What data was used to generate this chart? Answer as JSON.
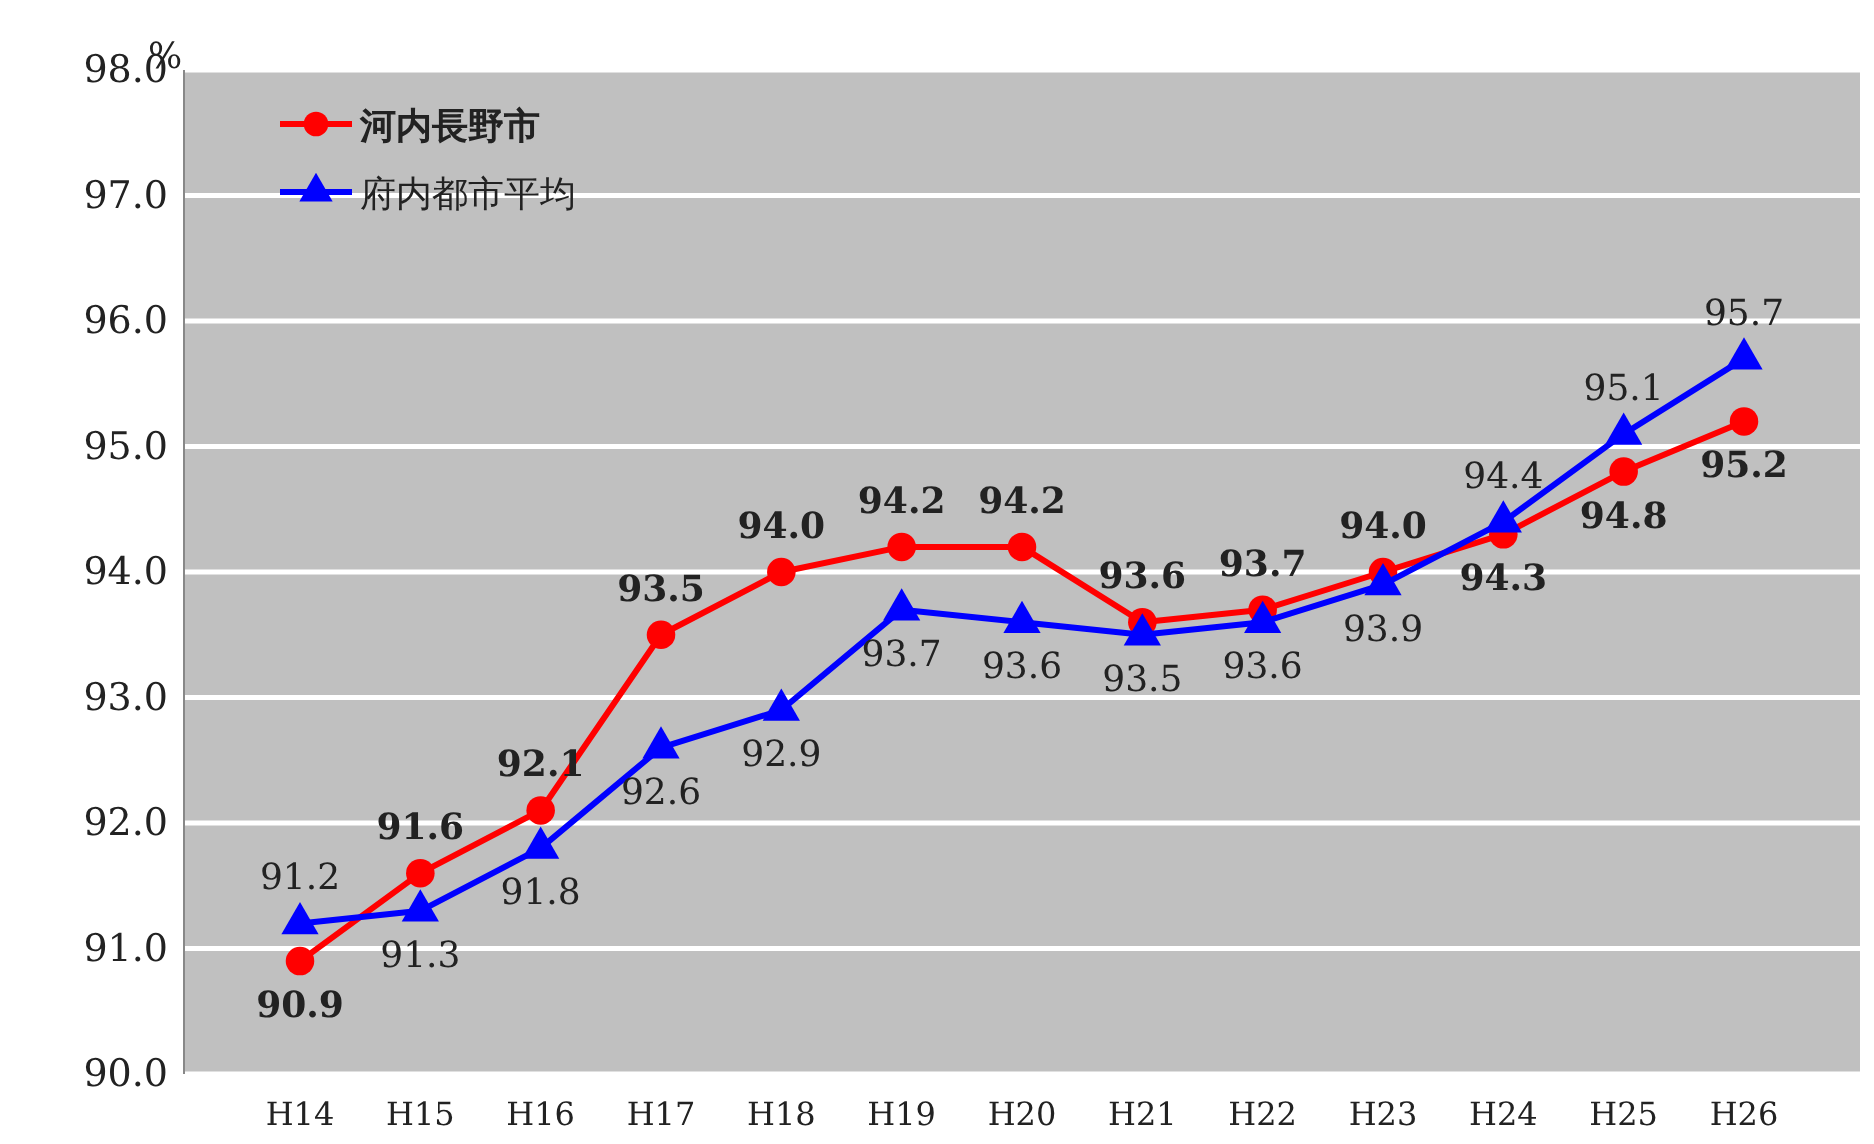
{
  "chart_data": {
    "type": "line",
    "ylabel": "%",
    "categories": [
      "H14",
      "H15",
      "H16",
      "H17",
      "H18",
      "H19",
      "H20",
      "H21",
      "H22",
      "H23",
      "H24",
      "H25",
      "H26"
    ],
    "series": [
      {
        "name": "河内長野市",
        "color": "#ff0000",
        "marker": "circle",
        "values": [
          90.9,
          91.6,
          92.1,
          93.5,
          94.0,
          94.2,
          94.2,
          93.6,
          93.7,
          94.0,
          94.3,
          94.8,
          95.2
        ],
        "value_labels": [
          "90.9",
          "91.6",
          "92.1",
          "93.5",
          "94.0",
          "94.2",
          "94.2",
          "93.6",
          "93.7",
          "94.0",
          "94.3",
          "94.8",
          "95.2"
        ]
      },
      {
        "name": "府内都市平均",
        "color": "#0000ff",
        "marker": "triangle",
        "values": [
          91.2,
          91.3,
          91.8,
          92.6,
          92.9,
          93.7,
          93.6,
          93.5,
          93.6,
          93.9,
          94.4,
          95.1,
          95.7
        ],
        "value_labels": [
          "91.2",
          "91.3",
          "91.8",
          "92.6",
          "92.9",
          "93.7",
          "93.6",
          "93.5",
          "93.6",
          "93.9",
          "94.4",
          "95.1",
          "95.7"
        ]
      }
    ],
    "ylim": [
      90,
      98
    ],
    "yticks": [
      {
        "value": 90,
        "label": "90.0"
      },
      {
        "value": 91,
        "label": "91.0"
      },
      {
        "value": 92,
        "label": "92.0"
      },
      {
        "value": 93,
        "label": "93.0"
      },
      {
        "value": 94,
        "label": "94.0"
      },
      {
        "value": 95,
        "label": "95.0"
      },
      {
        "value": 96,
        "label": "96.0"
      },
      {
        "value": 97,
        "label": "97.0"
      },
      {
        "value": 98,
        "label": "98.0"
      }
    ],
    "grid": "y",
    "legend": "top left"
  }
}
